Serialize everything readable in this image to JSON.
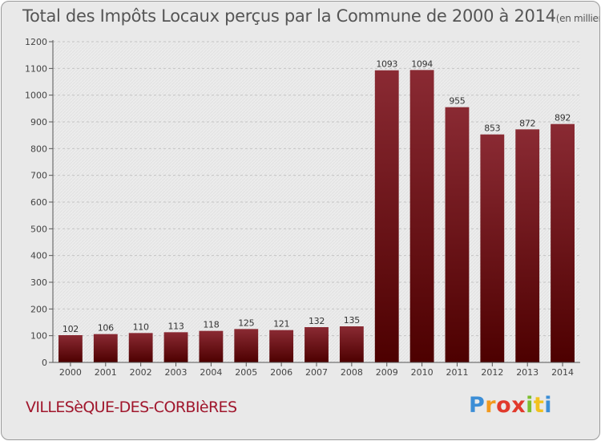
{
  "chart_data": {
    "type": "bar",
    "title": "Total des Impôts Locaux perçus par la Commune de 2000 à 2014",
    "title_unit": "(en milliers d'€)",
    "categories": [
      "2000",
      "2001",
      "2002",
      "2003",
      "2004",
      "2005",
      "2006",
      "2007",
      "2008",
      "2009",
      "2010",
      "2011",
      "2012",
      "2013",
      "2014"
    ],
    "values": [
      102,
      106,
      110,
      113,
      118,
      125,
      121,
      132,
      135,
      1093,
      1094,
      955,
      853,
      872,
      892
    ],
    "ylim": [
      0,
      1200
    ],
    "yticks": [
      0,
      100,
      200,
      300,
      400,
      500,
      600,
      700,
      800,
      900,
      1000,
      1100,
      1200
    ],
    "xlabel": "",
    "ylabel": "",
    "grid": true,
    "bar_color": "#7a1a22"
  },
  "commune": "VILLESèQUE-DES-CORBIèRES",
  "logo": "Proxiti"
}
